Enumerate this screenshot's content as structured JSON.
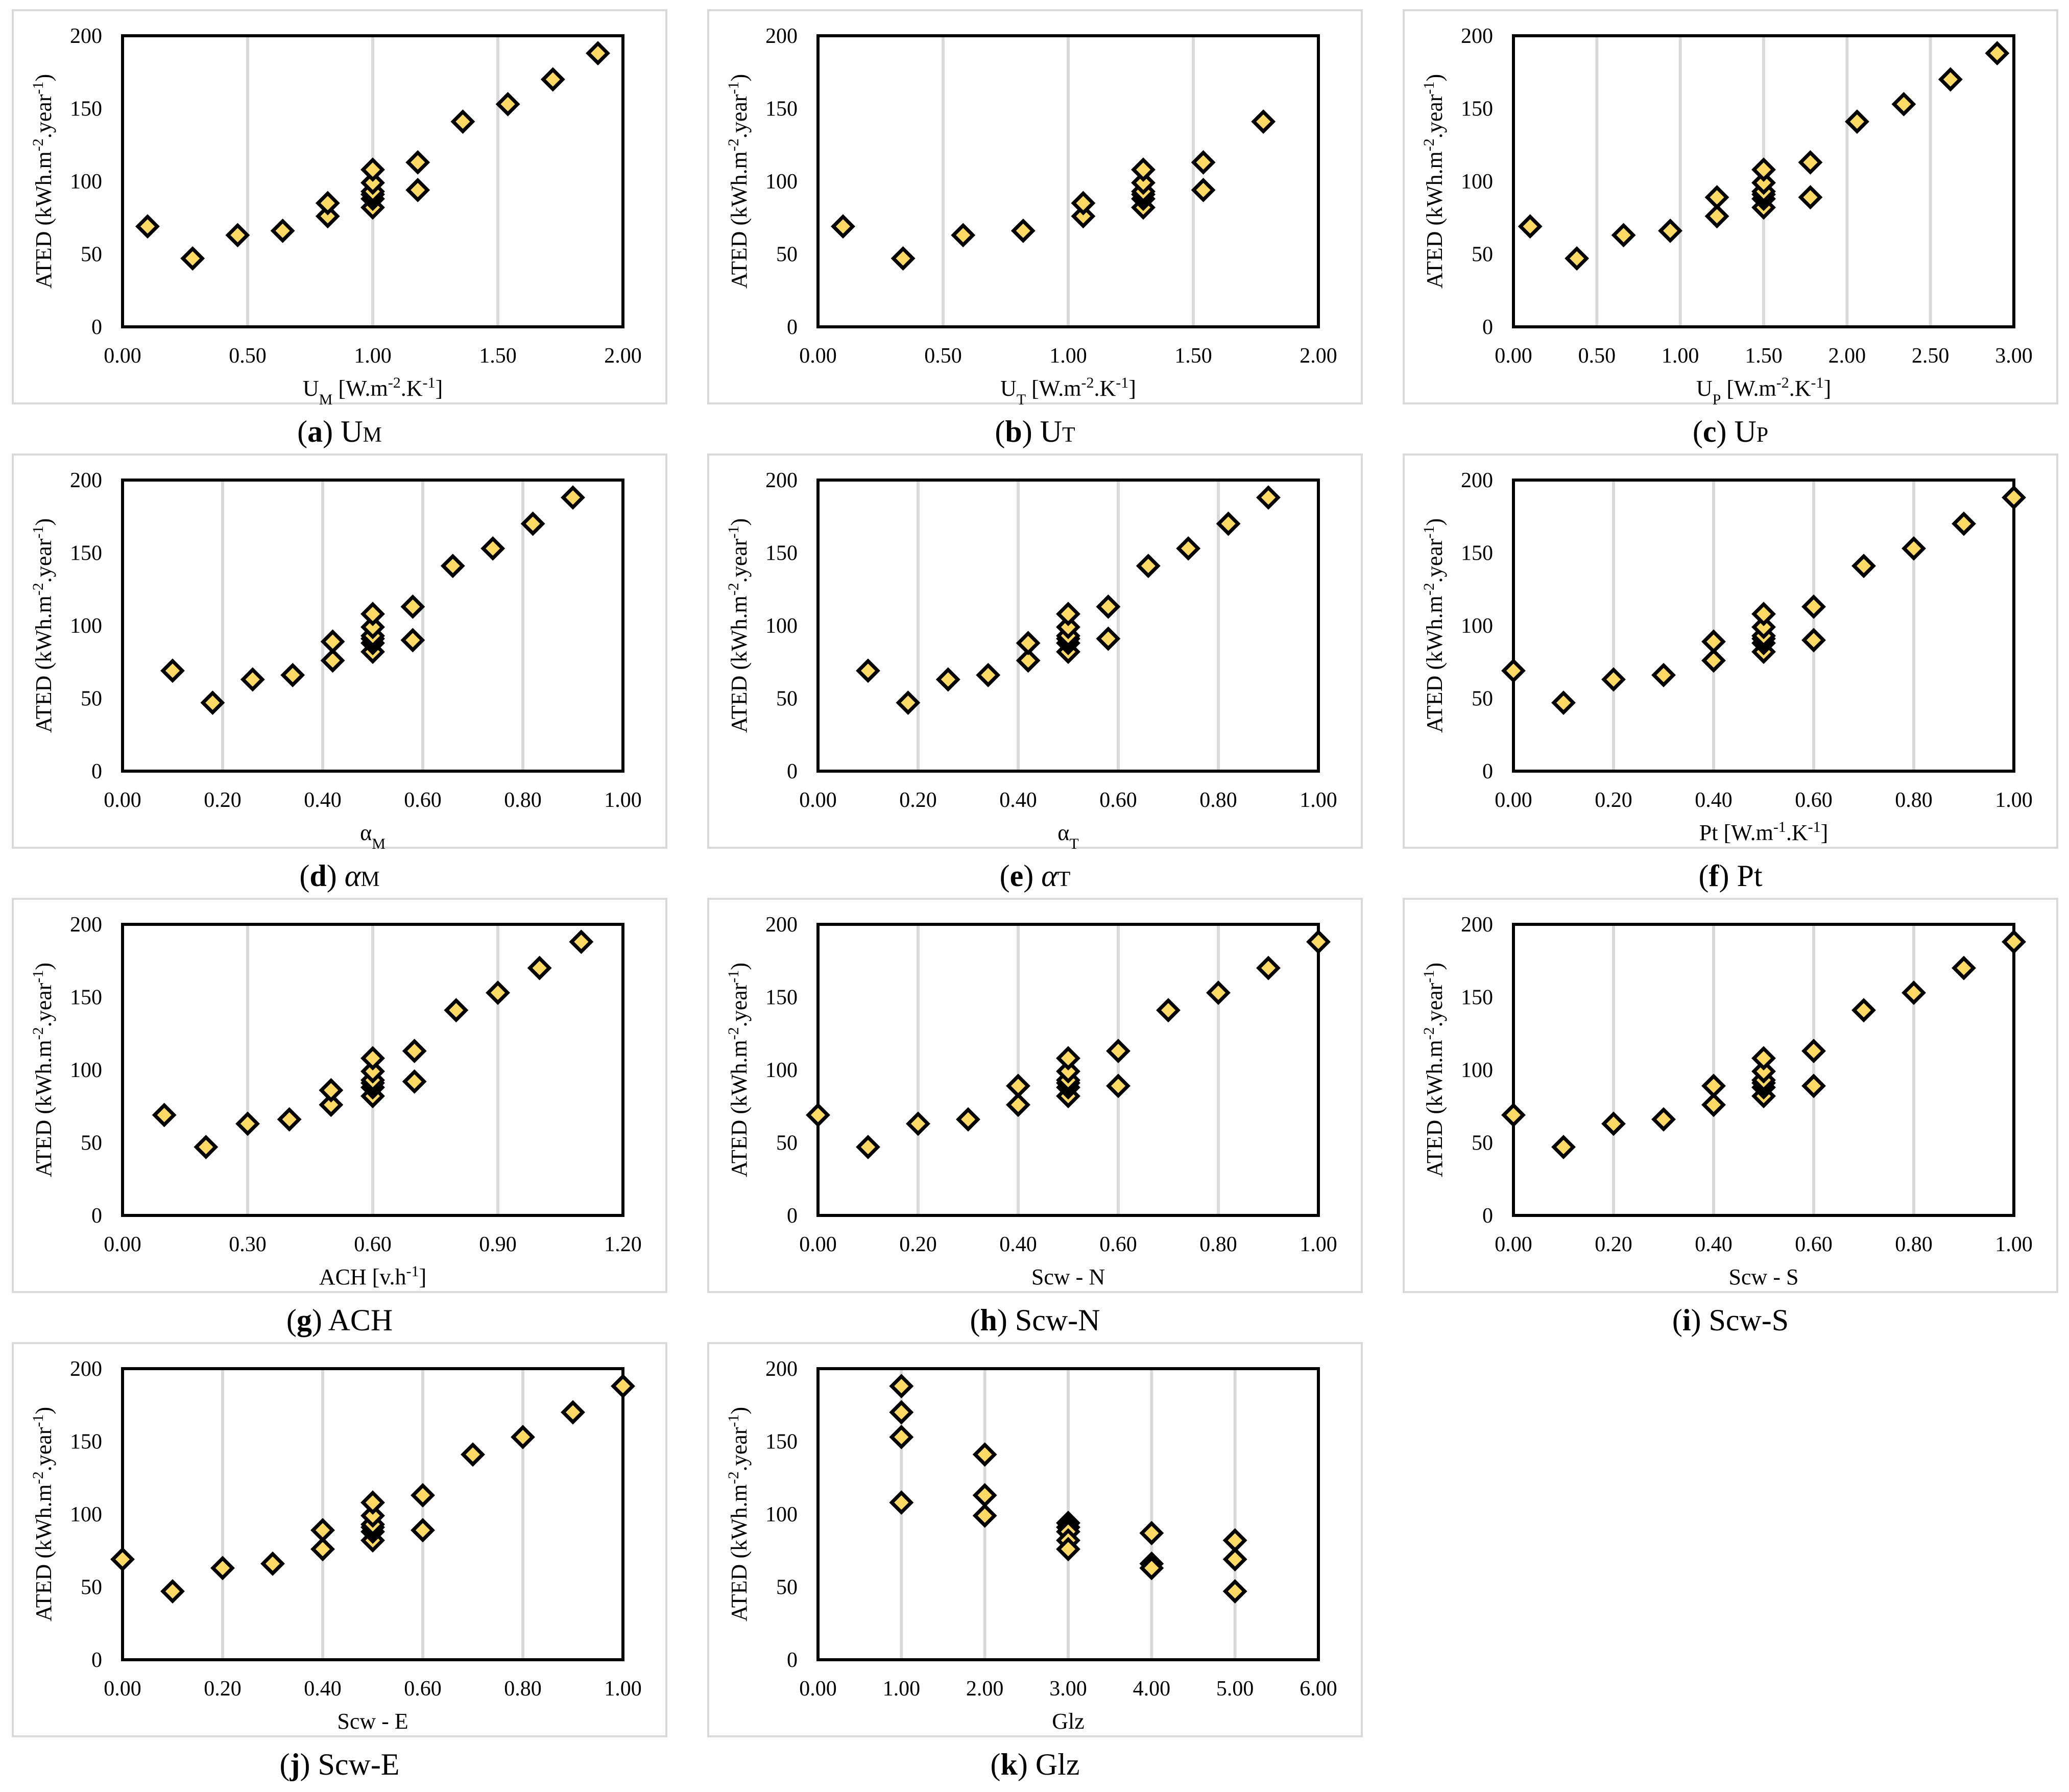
{
  "style": {
    "marker_fill": "#FFD966",
    "marker_stroke": "#000000",
    "gridline_color": "#D9D9D9",
    "frame_color": "#D9D9D9",
    "marker": "diamond"
  },
  "chart_data": [
    {
      "id": "a",
      "type": "scatter",
      "caption": {
        "letter": "(a)",
        "text": "U",
        "sub": "M"
      },
      "xlabel": {
        "main": "U",
        "sub": "M",
        "rest": " [W.m",
        "sup1": "-2",
        "rest2": ".K",
        "sup2": "-1",
        "rest3": "]"
      },
      "ylabel": "ATED (kWh.m-2.year-1)",
      "xlim": [
        0,
        2
      ],
      "ylim": [
        0,
        200
      ],
      "xticks": [
        0,
        0.5,
        1,
        1.5,
        2
      ],
      "xtick_labels": [
        "0.00",
        "0.50",
        "1.00",
        "1.50",
        "2.00"
      ],
      "yticks": [
        0,
        50,
        100,
        150,
        200
      ],
      "ytick_labels": [
        "0",
        "50",
        "100",
        "150",
        "200"
      ],
      "x": [
        0.1,
        0.28,
        0.46,
        0.64,
        0.82,
        0.82,
        1.0,
        1.0,
        1.0,
        1.0,
        1.0,
        1.0,
        1.18,
        1.18,
        1.36,
        1.54,
        1.72,
        1.9
      ],
      "y": [
        69,
        47,
        63,
        66,
        76,
        85,
        82,
        88,
        91,
        93,
        99,
        108,
        94,
        113,
        141,
        153,
        170,
        188
      ]
    },
    {
      "id": "b",
      "type": "scatter",
      "caption": {
        "letter": "(b)",
        "text": "U",
        "sub": "T"
      },
      "xlabel": {
        "main": "U",
        "sub": "T",
        "rest": " [W.m",
        "sup1": "-2",
        "rest2": ".K",
        "sup2": "-1",
        "rest3": "]"
      },
      "ylabel": "ATED (kWh.m-2.year-1)",
      "xlim": [
        0,
        2
      ],
      "ylim": [
        0,
        200
      ],
      "xticks": [
        0,
        0.5,
        1,
        1.5,
        2
      ],
      "xtick_labels": [
        "0.00",
        "0.50",
        "1.00",
        "1.50",
        "2.00"
      ],
      "yticks": [
        0,
        50,
        100,
        150,
        200
      ],
      "ytick_labels": [
        "0",
        "50",
        "100",
        "150",
        "200"
      ],
      "x": [
        0.1,
        0.34,
        0.58,
        0.82,
        1.06,
        1.06,
        1.3,
        1.3,
        1.3,
        1.3,
        1.3,
        1.3,
        1.54,
        1.54,
        1.78
      ],
      "y": [
        69,
        47,
        63,
        66,
        76,
        85,
        82,
        88,
        91,
        93,
        99,
        108,
        94,
        113,
        141
      ]
    },
    {
      "id": "c",
      "type": "scatter",
      "caption": {
        "letter": "(c)",
        "text": "U",
        "sub": "P"
      },
      "xlabel": {
        "main": "U",
        "sub": "P",
        "rest": " [W.m",
        "sup1": "-2",
        "rest2": ".K",
        "sup2": "-1",
        "rest3": "]"
      },
      "ylabel": "ATED (kWh.m-2.year-1)",
      "xlim": [
        0,
        3
      ],
      "ylim": [
        0,
        200
      ],
      "xticks": [
        0,
        0.5,
        1,
        1.5,
        2,
        2.5,
        3
      ],
      "xtick_labels": [
        "0.00",
        "0.50",
        "1.00",
        "1.50",
        "2.00",
        "2.50",
        "3.00"
      ],
      "yticks": [
        0,
        50,
        100,
        150,
        200
      ],
      "ytick_labels": [
        "0",
        "50",
        "100",
        "150",
        "200"
      ],
      "x": [
        0.1,
        0.38,
        0.66,
        0.94,
        1.22,
        1.22,
        1.5,
        1.5,
        1.5,
        1.5,
        1.5,
        1.5,
        1.78,
        1.78,
        2.06,
        2.34,
        2.62,
        2.9
      ],
      "y": [
        69,
        47,
        63,
        66,
        76,
        89,
        82,
        88,
        91,
        93,
        99,
        108,
        89,
        113,
        141,
        153,
        170,
        188
      ]
    },
    {
      "id": "d",
      "type": "scatter",
      "caption": {
        "letter": "(d)",
        "text": "α",
        "sub": "M"
      },
      "xlabel": {
        "main": "α",
        "sub": "M",
        "rest": "",
        "sup1": "",
        "rest2": "",
        "sup2": "",
        "rest3": ""
      },
      "ylabel": "ATED (kWh.m-2.year-1)",
      "xlim": [
        0,
        1
      ],
      "ylim": [
        0,
        200
      ],
      "xticks": [
        0,
        0.2,
        0.4,
        0.6,
        0.8,
        1.0
      ],
      "xtick_labels": [
        "0.00",
        "0.20",
        "0.40",
        "0.60",
        "0.80",
        "1.00"
      ],
      "yticks": [
        0,
        50,
        100,
        150,
        200
      ],
      "ytick_labels": [
        "0",
        "50",
        "100",
        "150",
        "200"
      ],
      "x": [
        0.1,
        0.18,
        0.26,
        0.34,
        0.42,
        0.42,
        0.5,
        0.5,
        0.5,
        0.5,
        0.5,
        0.5,
        0.58,
        0.58,
        0.66,
        0.74,
        0.82,
        0.9
      ],
      "y": [
        69,
        47,
        63,
        66,
        76,
        89,
        82,
        88,
        91,
        93,
        99,
        108,
        90,
        113,
        141,
        153,
        170,
        188
      ]
    },
    {
      "id": "e",
      "type": "scatter",
      "caption": {
        "letter": "(e)",
        "text": "α",
        "sub": "T"
      },
      "xlabel": {
        "main": "α",
        "sub": "T",
        "rest": "",
        "sup1": "",
        "rest2": "",
        "sup2": "",
        "rest3": ""
      },
      "ylabel": "ATED (kWh.m-2.year-1)",
      "xlim": [
        0,
        1
      ],
      "ylim": [
        0,
        200
      ],
      "xticks": [
        0,
        0.2,
        0.4,
        0.6,
        0.8,
        1.0
      ],
      "xtick_labels": [
        "0.00",
        "0.20",
        "0.40",
        "0.60",
        "0.80",
        "1.00"
      ],
      "yticks": [
        0,
        50,
        100,
        150,
        200
      ],
      "ytick_labels": [
        "0",
        "50",
        "100",
        "150",
        "200"
      ],
      "x": [
        0.1,
        0.18,
        0.26,
        0.34,
        0.42,
        0.42,
        0.5,
        0.5,
        0.5,
        0.5,
        0.5,
        0.5,
        0.58,
        0.58,
        0.66,
        0.74,
        0.82,
        0.9
      ],
      "y": [
        69,
        47,
        63,
        66,
        76,
        88,
        82,
        88,
        91,
        93,
        99,
        108,
        91,
        113,
        141,
        153,
        170,
        188
      ]
    },
    {
      "id": "f",
      "type": "scatter",
      "caption": {
        "letter": "(f)",
        "text": "Pt",
        "sub": ""
      },
      "xlabel": {
        "main": "Pt",
        "sub": "",
        "rest": " [W.m",
        "sup1": "-1",
        "rest2": ".K",
        "sup2": "-1",
        "rest3": "]"
      },
      "ylabel": "ATED (kWh.m-2.year-1)",
      "xlim": [
        0,
        1
      ],
      "ylim": [
        0,
        200
      ],
      "xticks": [
        0,
        0.2,
        0.4,
        0.6,
        0.8,
        1.0
      ],
      "xtick_labels": [
        "0.00",
        "0.20",
        "0.40",
        "0.60",
        "0.80",
        "1.00"
      ],
      "yticks": [
        0,
        50,
        100,
        150,
        200
      ],
      "ytick_labels": [
        "0",
        "50",
        "100",
        "150",
        "200"
      ],
      "x": [
        0.0,
        0.1,
        0.2,
        0.3,
        0.4,
        0.4,
        0.5,
        0.5,
        0.5,
        0.5,
        0.5,
        0.5,
        0.6,
        0.6,
        0.7,
        0.8,
        0.9,
        1.0
      ],
      "y": [
        69,
        47,
        63,
        66,
        76,
        89,
        82,
        88,
        91,
        93,
        99,
        108,
        90,
        113,
        141,
        153,
        170,
        188
      ]
    },
    {
      "id": "g",
      "type": "scatter",
      "caption": {
        "letter": "(g)",
        "text": "ACH",
        "sub": ""
      },
      "xlabel": {
        "main": "ACH",
        "sub": "",
        "rest": " [v.h",
        "sup1": "-1",
        "rest2": "]",
        "sup2": "",
        "rest3": ""
      },
      "ylabel": "ATED (kWh.m-2.year-1)",
      "xlim": [
        0,
        1.2
      ],
      "ylim": [
        0,
        200
      ],
      "xticks": [
        0,
        0.3,
        0.6,
        0.9,
        1.2
      ],
      "xtick_labels": [
        "0.00",
        "0.30",
        "0.60",
        "0.90",
        "1.20"
      ],
      "yticks": [
        0,
        50,
        100,
        150,
        200
      ],
      "ytick_labels": [
        "0",
        "50",
        "100",
        "150",
        "200"
      ],
      "x": [
        0.1,
        0.2,
        0.3,
        0.4,
        0.5,
        0.5,
        0.6,
        0.6,
        0.6,
        0.6,
        0.6,
        0.6,
        0.7,
        0.7,
        0.8,
        0.9,
        1.0,
        1.1
      ],
      "y": [
        69,
        47,
        63,
        66,
        76,
        86,
        82,
        88,
        91,
        93,
        99,
        108,
        92,
        113,
        141,
        153,
        170,
        188
      ]
    },
    {
      "id": "h",
      "type": "scatter",
      "caption": {
        "letter": "(h)",
        "text": "Scw-N",
        "sub": ""
      },
      "xlabel": {
        "main": "Scw - N",
        "sub": "",
        "rest": "",
        "sup1": "",
        "rest2": "",
        "sup2": "",
        "rest3": ""
      },
      "ylabel": "ATED (kWh.m-2.year-1)",
      "xlim": [
        0,
        1
      ],
      "ylim": [
        0,
        200
      ],
      "xticks": [
        0,
        0.2,
        0.4,
        0.6,
        0.8,
        1.0
      ],
      "xtick_labels": [
        "0.00",
        "0.20",
        "0.40",
        "0.60",
        "0.80",
        "1.00"
      ],
      "yticks": [
        0,
        50,
        100,
        150,
        200
      ],
      "ytick_labels": [
        "0",
        "50",
        "100",
        "150",
        "200"
      ],
      "x": [
        0.0,
        0.1,
        0.2,
        0.3,
        0.4,
        0.4,
        0.5,
        0.5,
        0.5,
        0.5,
        0.5,
        0.5,
        0.6,
        0.6,
        0.7,
        0.8,
        0.9,
        1.0
      ],
      "y": [
        69,
        47,
        63,
        66,
        76,
        89,
        82,
        88,
        91,
        93,
        99,
        108,
        89,
        113,
        141,
        153,
        170,
        188
      ]
    },
    {
      "id": "i",
      "type": "scatter",
      "caption": {
        "letter": "(i)",
        "text": "Scw-S",
        "sub": ""
      },
      "xlabel": {
        "main": "Scw - S",
        "sub": "",
        "rest": "",
        "sup1": "",
        "rest2": "",
        "sup2": "",
        "rest3": ""
      },
      "ylabel": "ATED (kWh.m-2.year-1)",
      "xlim": [
        0,
        1
      ],
      "ylim": [
        0,
        200
      ],
      "xticks": [
        0,
        0.2,
        0.4,
        0.6,
        0.8,
        1.0
      ],
      "xtick_labels": [
        "0.00",
        "0.20",
        "0.40",
        "0.60",
        "0.80",
        "1.00"
      ],
      "yticks": [
        0,
        50,
        100,
        150,
        200
      ],
      "ytick_labels": [
        "0",
        "50",
        "100",
        "150",
        "200"
      ],
      "x": [
        0.0,
        0.1,
        0.2,
        0.3,
        0.4,
        0.4,
        0.5,
        0.5,
        0.5,
        0.5,
        0.5,
        0.5,
        0.6,
        0.6,
        0.7,
        0.8,
        0.9,
        1.0
      ],
      "y": [
        69,
        47,
        63,
        66,
        76,
        89,
        82,
        88,
        91,
        93,
        99,
        108,
        89,
        113,
        141,
        153,
        170,
        188
      ]
    },
    {
      "id": "j",
      "type": "scatter",
      "caption": {
        "letter": "(j)",
        "text": "Scw-E",
        "sub": ""
      },
      "xlabel": {
        "main": "Scw - E",
        "sub": "",
        "rest": "",
        "sup1": "",
        "rest2": "",
        "sup2": "",
        "rest3": ""
      },
      "ylabel": "ATED (kWh.m-2.year-1)",
      "xlim": [
        0,
        1
      ],
      "ylim": [
        0,
        200
      ],
      "xticks": [
        0,
        0.2,
        0.4,
        0.6,
        0.8,
        1.0
      ],
      "xtick_labels": [
        "0.00",
        "0.20",
        "0.40",
        "0.60",
        "0.80",
        "1.00"
      ],
      "yticks": [
        0,
        50,
        100,
        150,
        200
      ],
      "ytick_labels": [
        "0",
        "50",
        "100",
        "150",
        "200"
      ],
      "x": [
        0.0,
        0.1,
        0.2,
        0.3,
        0.4,
        0.4,
        0.5,
        0.5,
        0.5,
        0.5,
        0.5,
        0.5,
        0.6,
        0.6,
        0.7,
        0.8,
        0.9,
        1.0
      ],
      "y": [
        69,
        47,
        63,
        66,
        76,
        89,
        82,
        88,
        91,
        93,
        99,
        108,
        89,
        113,
        141,
        153,
        170,
        188
      ]
    },
    {
      "id": "k",
      "type": "scatter",
      "caption": {
        "letter": "(k)",
        "text": "Glz",
        "sub": ""
      },
      "xlabel": {
        "main": "Glz",
        "sub": "",
        "rest": "",
        "sup1": "",
        "rest2": "",
        "sup2": "",
        "rest3": ""
      },
      "ylabel": "ATED (kWh.m-2.year-1)",
      "xlim": [
        0,
        6
      ],
      "ylim": [
        0,
        200
      ],
      "xticks": [
        0,
        1,
        2,
        3,
        4,
        5,
        6
      ],
      "xtick_labels": [
        "0.00",
        "1.00",
        "2.00",
        "3.00",
        "4.00",
        "5.00",
        "6.00"
      ],
      "yticks": [
        0,
        50,
        100,
        150,
        200
      ],
      "ytick_labels": [
        "0",
        "50",
        "100",
        "150",
        "200"
      ],
      "x": [
        1,
        1,
        1,
        1,
        2,
        2,
        2,
        3,
        3,
        3,
        3,
        3,
        4,
        4,
        4,
        5,
        5,
        5
      ],
      "y": [
        188,
        170,
        153,
        108,
        141,
        113,
        99,
        94,
        91,
        88,
        82,
        76,
        87,
        66,
        63,
        82,
        69,
        47
      ]
    }
  ]
}
